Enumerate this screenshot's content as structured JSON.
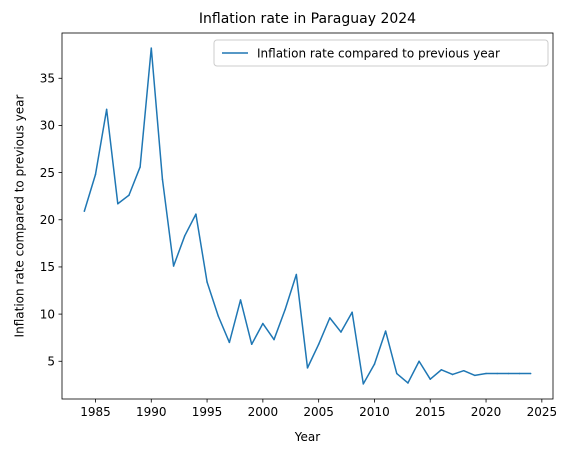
{
  "chart_data": {
    "type": "line",
    "title": "Inflation rate in Paraguay 2024",
    "xlabel": "Year",
    "ylabel": "Inflation rate compared to previous year",
    "xlim": [
      1982,
      2026
    ],
    "ylim": [
      1.0,
      39.8
    ],
    "xticks": [
      1985,
      1990,
      1995,
      2000,
      2005,
      2010,
      2015,
      2020,
      2025
    ],
    "yticks": [
      5,
      10,
      15,
      20,
      25,
      30,
      35
    ],
    "grid": false,
    "legend_position": "top-right",
    "series": [
      {
        "name": "Inflation rate compared to previous year",
        "color": "#1f77b4",
        "x": [
          1984,
          1985,
          1986,
          1987,
          1988,
          1989,
          1990,
          1991,
          1992,
          1993,
          1994,
          1995,
          1996,
          1997,
          1998,
          1999,
          2000,
          2001,
          2002,
          2003,
          2004,
          2005,
          2006,
          2007,
          2008,
          2009,
          2010,
          2011,
          2012,
          2013,
          2014,
          2015,
          2016,
          2017,
          2018,
          2019,
          2020,
          2021,
          2022,
          2023,
          2024
        ],
        "y": [
          20.9,
          24.8,
          31.7,
          21.7,
          22.6,
          25.6,
          38.2,
          24.3,
          15.1,
          18.3,
          20.6,
          13.4,
          9.8,
          7.0,
          11.5,
          6.8,
          9.0,
          7.3,
          10.5,
          14.2,
          4.3,
          6.8,
          9.6,
          8.1,
          10.2,
          2.6,
          4.7,
          8.2,
          3.7,
          2.7,
          5.0,
          3.1,
          4.1,
          3.6,
          4.0,
          3.5,
          3.7,
          3.7,
          3.7,
          3.7,
          3.7
        ]
      }
    ]
  }
}
